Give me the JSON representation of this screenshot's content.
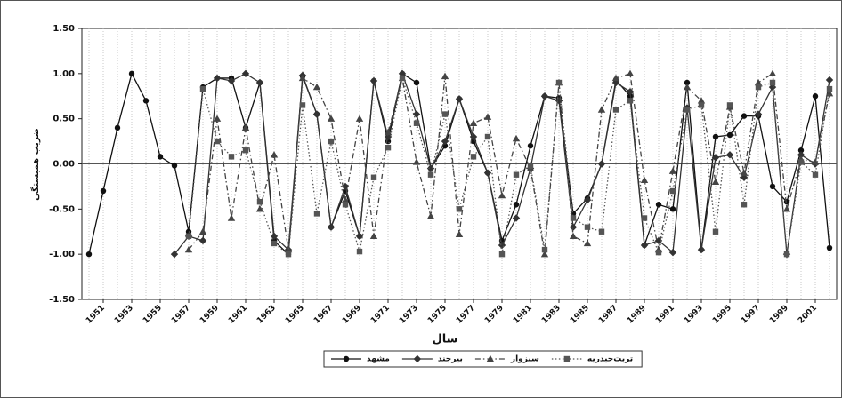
{
  "chart_data": {
    "type": "line",
    "y_label": "ضریب همبستگی",
    "x_label": "سال",
    "x": [
      1950,
      1951,
      1952,
      1953,
      1954,
      1955,
      1956,
      1957,
      1958,
      1959,
      1960,
      1961,
      1962,
      1963,
      1964,
      1965,
      1966,
      1967,
      1968,
      1969,
      1970,
      1971,
      1972,
      1973,
      1974,
      1975,
      1976,
      1977,
      1978,
      1979,
      1980,
      1981,
      1982,
      1983,
      1984,
      1985,
      1986,
      1987,
      1988,
      1989,
      1990,
      1991,
      1992,
      1993,
      1994,
      1995,
      1996,
      1997,
      1998,
      1999,
      2000,
      2001,
      2002
    ],
    "xlim": [
      1949.5,
      2002.5
    ],
    "xticks": [
      1951,
      1953,
      1955,
      1957,
      1959,
      1961,
      1963,
      1965,
      1967,
      1969,
      1971,
      1973,
      1975,
      1977,
      1979,
      1981,
      1983,
      1985,
      1987,
      1989,
      1991,
      1993,
      1995,
      1997,
      1999,
      2001
    ],
    "ylim": [
      -1.5,
      1.5
    ],
    "yticks": [
      {
        "value": 1.5,
        "label": "1.50"
      },
      {
        "value": 1,
        "label": "1.00"
      },
      {
        "value": 0.5,
        "label": "0.50"
      },
      {
        "value": 0,
        "label": "0.00"
      },
      {
        "value": -0.5,
        "label": "-0.50"
      },
      {
        "value": -1,
        "label": "-1.00"
      },
      {
        "value": -1.5,
        "label": "-1.50"
      }
    ],
    "grid": true,
    "legend": "bottom",
    "series": [
      {
        "name": "مشهد",
        "color": "#111111",
        "marker": "circle",
        "line_style": "solid",
        "values": [
          -1,
          -0.3,
          0.4,
          1.0,
          0.7,
          0.08,
          -0.02,
          -0.75,
          0.85,
          0.95,
          0.95,
          0.4,
          0.9,
          -0.85,
          -1.0,
          0.97,
          0.55,
          -0.7,
          -0.3,
          -0.8,
          0.92,
          0.25,
          1.0,
          0.9,
          -0.05,
          0.2,
          0.72,
          0.25,
          -0.1,
          -0.85,
          -0.45,
          0.2,
          0.75,
          0.73,
          -0.55,
          -0.38,
          0.0,
          0.93,
          0.75,
          -0.9,
          -0.45,
          -0.5,
          0.9,
          -0.95,
          0.3,
          0.32,
          0.53,
          0.53,
          -0.25,
          -0.42,
          0.15,
          0.75,
          -0.93
        ]
      },
      {
        "name": "بیرجند",
        "color": "#333333",
        "marker": "diamond",
        "line_style": "solid",
        "values": [
          null,
          null,
          null,
          null,
          null,
          null,
          -1,
          -0.8,
          -0.85,
          0.95,
          0.92,
          1.0,
          0.9,
          -0.8,
          -0.95,
          0.98,
          0.55,
          -0.7,
          -0.25,
          -0.8,
          0.92,
          0.3,
          1.0,
          0.55,
          -0.05,
          0.25,
          0.72,
          0.3,
          -0.1,
          -0.9,
          -0.6,
          -0.05,
          0.75,
          0.7,
          -0.7,
          -0.4,
          0.0,
          0.9,
          0.8,
          -0.9,
          -0.85,
          -0.98,
          0.62,
          -0.95,
          0.07,
          0.1,
          -0.15,
          0.55,
          0.85,
          -1.0,
          0.1,
          0.0,
          0.93
        ]
      },
      {
        "name": "سبزوار",
        "color": "#444444",
        "marker": "triangle",
        "line_style": "dashdot",
        "values": [
          null,
          null,
          null,
          null,
          null,
          null,
          null,
          -0.95,
          -0.75,
          0.5,
          -0.6,
          0.4,
          -0.5,
          0.1,
          -0.95,
          0.95,
          0.85,
          0.5,
          -0.4,
          0.5,
          -0.8,
          0.35,
          0.95,
          0.02,
          -0.58,
          0.97,
          -0.78,
          0.45,
          0.52,
          -0.35,
          0.28,
          -0.05,
          -1.0,
          0.9,
          -0.8,
          -0.88,
          0.6,
          0.95,
          1.0,
          -0.18,
          -0.95,
          -0.08,
          0.85,
          0.7,
          -0.2,
          0.63,
          -0.1,
          0.9,
          1.0,
          -0.5,
          0.05,
          0.02,
          0.78
        ]
      },
      {
        "name": "تربت‌حیدریه",
        "color": "#555555",
        "marker": "square",
        "line_style": "dotted",
        "values": [
          null,
          null,
          null,
          null,
          null,
          null,
          null,
          -0.8,
          0.83,
          0.25,
          0.08,
          0.15,
          -0.42,
          -0.88,
          -1.0,
          0.65,
          -0.55,
          0.25,
          -0.45,
          -0.97,
          -0.15,
          0.18,
          0.95,
          0.45,
          -0.12,
          0.55,
          -0.5,
          0.08,
          0.3,
          -1.0,
          -0.12,
          -0.02,
          -0.95,
          0.9,
          -0.6,
          -0.7,
          -0.75,
          0.6,
          0.7,
          -0.6,
          -0.98,
          -0.3,
          0.6,
          0.65,
          -0.75,
          0.65,
          -0.45,
          0.85,
          0.9,
          -1.0,
          0.02,
          -0.12,
          0.83
        ]
      }
    ]
  }
}
